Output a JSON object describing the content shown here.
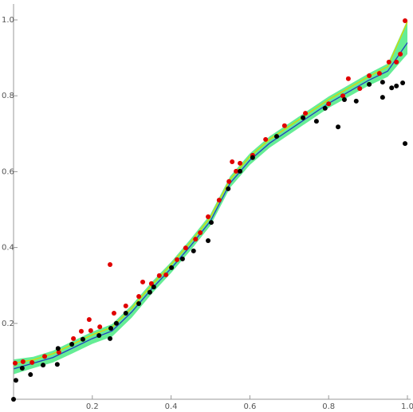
{
  "chart_data": {
    "type": "scatter",
    "xlim": [
      0,
      1
    ],
    "ylim": [
      0,
      1
    ],
    "xticks": [
      0.2,
      0.4,
      0.6,
      0.8,
      {
        "value": 1,
        "label": "1.0"
      }
    ],
    "yticks": [
      0.2,
      0.4,
      0.6,
      0.8,
      {
        "value": 1,
        "label": "1.0"
      }
    ],
    "series": [
      {
        "color": "#e00000",
        "x": [
          0.004,
          0.024,
          0.047,
          0.079,
          0.115,
          0.152,
          0.172,
          0.192,
          0.196,
          0.219,
          0.245,
          0.255,
          0.285,
          0.318,
          0.328,
          0.35,
          0.37,
          0.387,
          0.415,
          0.437,
          0.462,
          0.474,
          0.494,
          0.522,
          0.547,
          0.555,
          0.565,
          0.575,
          0.607,
          0.64,
          0.688,
          0.741,
          0.8,
          0.836,
          0.85,
          0.879,
          0.903,
          0.929,
          0.953,
          0.972,
          0.982,
          0.994
        ],
        "values": [
          0.095,
          0.099,
          0.097,
          0.113,
          0.124,
          0.16,
          0.179,
          0.21,
          0.181,
          0.191,
          0.355,
          0.227,
          0.246,
          0.271,
          0.309,
          0.305,
          0.326,
          0.328,
          0.368,
          0.399,
          0.422,
          0.439,
          0.481,
          0.525,
          0.574,
          0.626,
          0.601,
          0.622,
          0.643,
          0.685,
          0.721,
          0.754,
          0.779,
          0.8,
          0.845,
          0.819,
          0.853,
          0.859,
          0.889,
          0.889,
          0.91,
          0.998
        ]
      },
      {
        "color": "#000000",
        "x": [
          0,
          0.006,
          0.022,
          0.043,
          0.075,
          0.111,
          0.113,
          0.148,
          0.176,
          0.217,
          0.245,
          0.247,
          0.261,
          0.285,
          0.318,
          0.346,
          0.356,
          0.401,
          0.429,
          0.457,
          0.494,
          0.502,
          0.545,
          0.575,
          0.607,
          0.668,
          0.735,
          0.769,
          0.791,
          0.824,
          0.84,
          0.87,
          0.903,
          0.937,
          0.937,
          0.96,
          0.972,
          0.988,
          0.994
        ],
        "values": [
          0,
          0.05,
          0.082,
          0.065,
          0.09,
          0.092,
          0.134,
          0.145,
          0.158,
          0.168,
          0.16,
          0.187,
          0.2,
          0.227,
          0.252,
          0.282,
          0.296,
          0.347,
          0.37,
          0.391,
          0.418,
          0.466,
          0.555,
          0.601,
          0.637,
          0.693,
          0.742,
          0.733,
          0.767,
          0.718,
          0.79,
          0.786,
          0.83,
          0.836,
          0.796,
          0.821,
          0.826,
          0.834,
          0.674
        ]
      }
    ],
    "line_x": [
      0,
      0.05,
      0.1,
      0.15,
      0.2,
      0.25,
      0.3,
      0.35,
      0.4,
      0.45,
      0.5,
      0.55,
      0.6,
      0.65,
      0.7,
      0.75,
      0.8,
      0.85,
      0.9,
      0.95,
      1
    ],
    "band": {
      "color": "#3ee87a",
      "lower": [
        0.066,
        0.082,
        0.097,
        0.121,
        0.146,
        0.165,
        0.215,
        0.277,
        0.333,
        0.393,
        0.458,
        0.558,
        0.618,
        0.663,
        0.698,
        0.733,
        0.768,
        0.797,
        0.826,
        0.85,
        0.91
      ],
      "upper": [
        0.105,
        0.112,
        0.128,
        0.153,
        0.178,
        0.198,
        0.248,
        0.308,
        0.362,
        0.423,
        0.488,
        0.588,
        0.648,
        0.693,
        0.728,
        0.763,
        0.798,
        0.828,
        0.858,
        0.885,
        1.0
      ]
    },
    "lines": [
      {
        "color": "#d8d800",
        "values": [
          0.095,
          0.104,
          0.12,
          0.145,
          0.17,
          0.19,
          0.24,
          0.3,
          0.355,
          0.415,
          0.48,
          0.58,
          0.64,
          0.685,
          0.72,
          0.755,
          0.79,
          0.82,
          0.85,
          0.877,
          0.995
        ]
      },
      {
        "color": "#2040c0",
        "values": [
          0.08,
          0.095,
          0.11,
          0.135,
          0.16,
          0.18,
          0.23,
          0.29,
          0.345,
          0.405,
          0.47,
          0.57,
          0.63,
          0.675,
          0.71,
          0.745,
          0.78,
          0.81,
          0.84,
          0.865,
          0.94
        ]
      }
    ]
  }
}
